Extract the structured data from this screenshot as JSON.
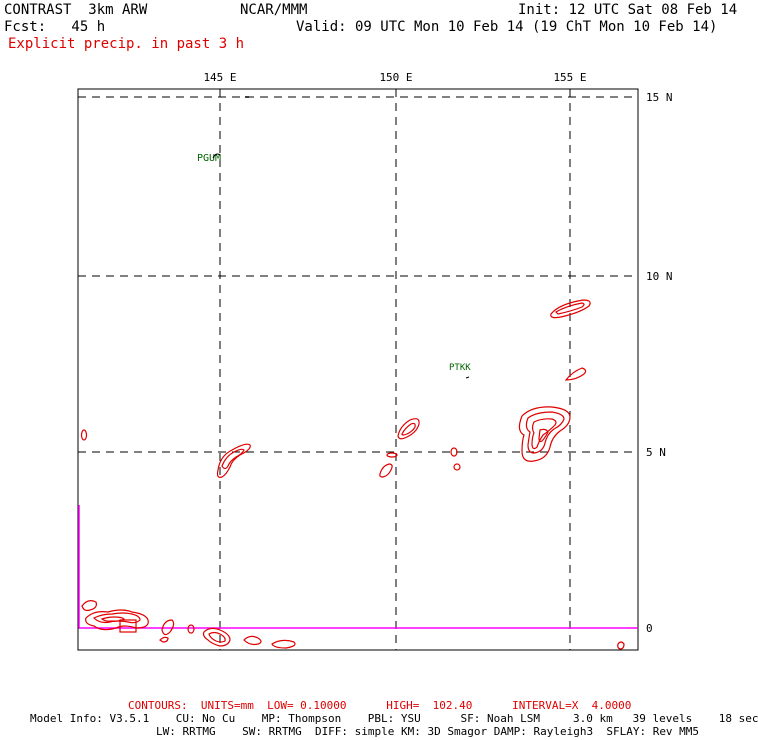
{
  "header": {
    "model": "CONTRAST  3km ARW",
    "org": "NCAR/MMM",
    "init": "Init: 12 UTC Sat 08 Feb 14",
    "fcst": "Fcst:   45 h",
    "valid": "Valid: 09 UTC Mon 10 Feb 14 (19 ChT Mon 10 Feb 14)",
    "field": "Explicit precip. in past 3 h"
  },
  "map": {
    "lon_labels": [
      "145 E",
      "150 E",
      "155 E"
    ],
    "lat_labels": [
      "15 N",
      "10 N",
      "5 N",
      "0"
    ],
    "stations": [
      {
        "name": "PGUM"
      },
      {
        "name": "PTKK"
      }
    ],
    "colors": {
      "contour": "#e00000",
      "station": "#006400",
      "boundary": "#ff00ff",
      "grid": "#000000"
    }
  },
  "footer": {
    "contours": "CONTOURS:  UNITS=mm  LOW= 0.10000      HIGH=  102.40      INTERVAL=X  4.0000",
    "model_info_1": "Model Info: V3.5.1    CU: No Cu    MP: Thompson    PBL: YSU      SF: Noah LSM     3.0 km   39 levels    18 sec",
    "model_info_2": "LW: RRTMG    SW: RRTMG  DIFF: simple KM: 3D Smagor DAMP: Rayleigh3  SFLAY: Rev MM5"
  }
}
